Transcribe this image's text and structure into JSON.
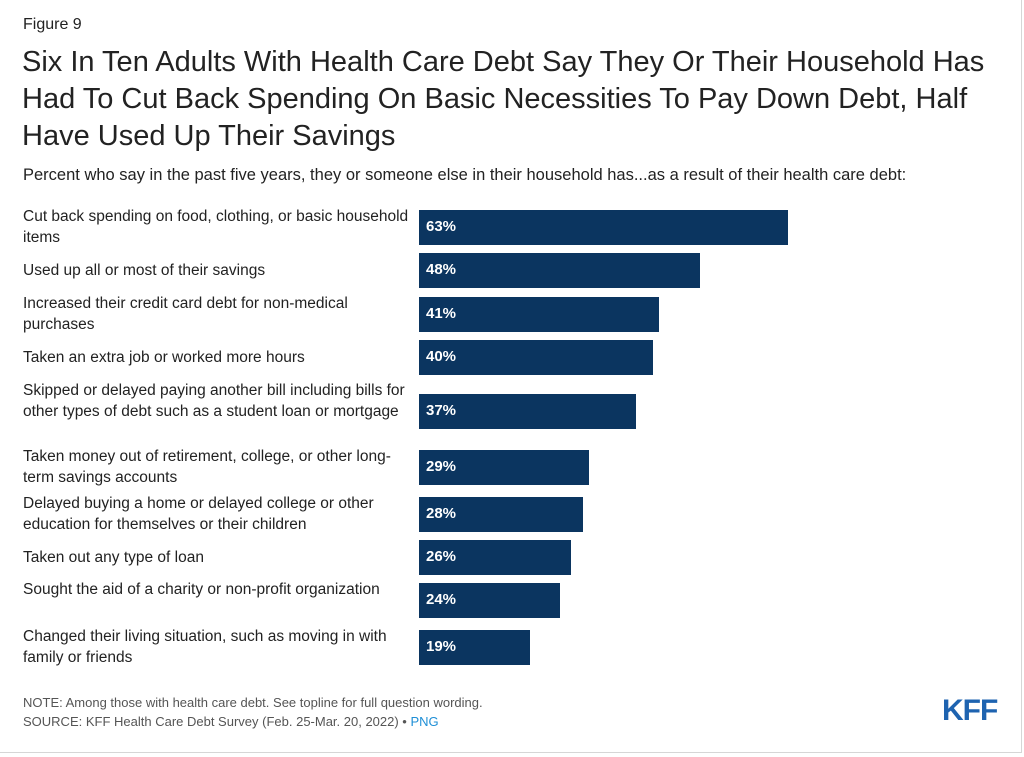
{
  "figure_label": "Figure 9",
  "title": "Six In Ten Adults With Health Care Debt Say They Or Their Household Has Had To Cut Back Spending On Basic Necessities To Pay Down Debt, Half Have Used Up Their Savings",
  "subtitle": "Percent who say in the past five years, they or someone else in their household has...as a result of their health care debt:",
  "chart_data": {
    "type": "bar",
    "orientation": "horizontal",
    "categories": [
      "Cut back spending on food, clothing, or basic household items",
      "Used up all or most of their savings",
      "Increased their credit card debt for non-medical purchases",
      "Taken an extra job or worked more hours",
      "Skipped or delayed paying another bill including bills for other types of debt such as a student loan or mortgage",
      "Taken money out of retirement, college, or other long-term savings accounts",
      "Delayed buying a home or delayed college or other education for themselves or their children",
      "Taken out any type of loan",
      "Sought the aid of a charity or non-profit organization",
      "Changed their living situation, such as moving in with family or friends"
    ],
    "values": [
      63,
      48,
      41,
      40,
      37,
      29,
      28,
      26,
      24,
      19
    ],
    "value_labels": [
      "63%",
      "48%",
      "41%",
      "40%",
      "37%",
      "29%",
      "28%",
      "26%",
      "24%",
      "19%"
    ],
    "bar_color": "#0b3560"
  },
  "footer": {
    "note": "NOTE: Among those with health care debt. See topline for full question wording.",
    "source": "SOURCE: KFF Health Care Debt Survey (Feb. 25-Mar. 20, 2022) • ",
    "link_label": "PNG",
    "link_color": "#1f8fd6"
  },
  "logo": {
    "text": "KFF",
    "color": "#1e63b0"
  }
}
